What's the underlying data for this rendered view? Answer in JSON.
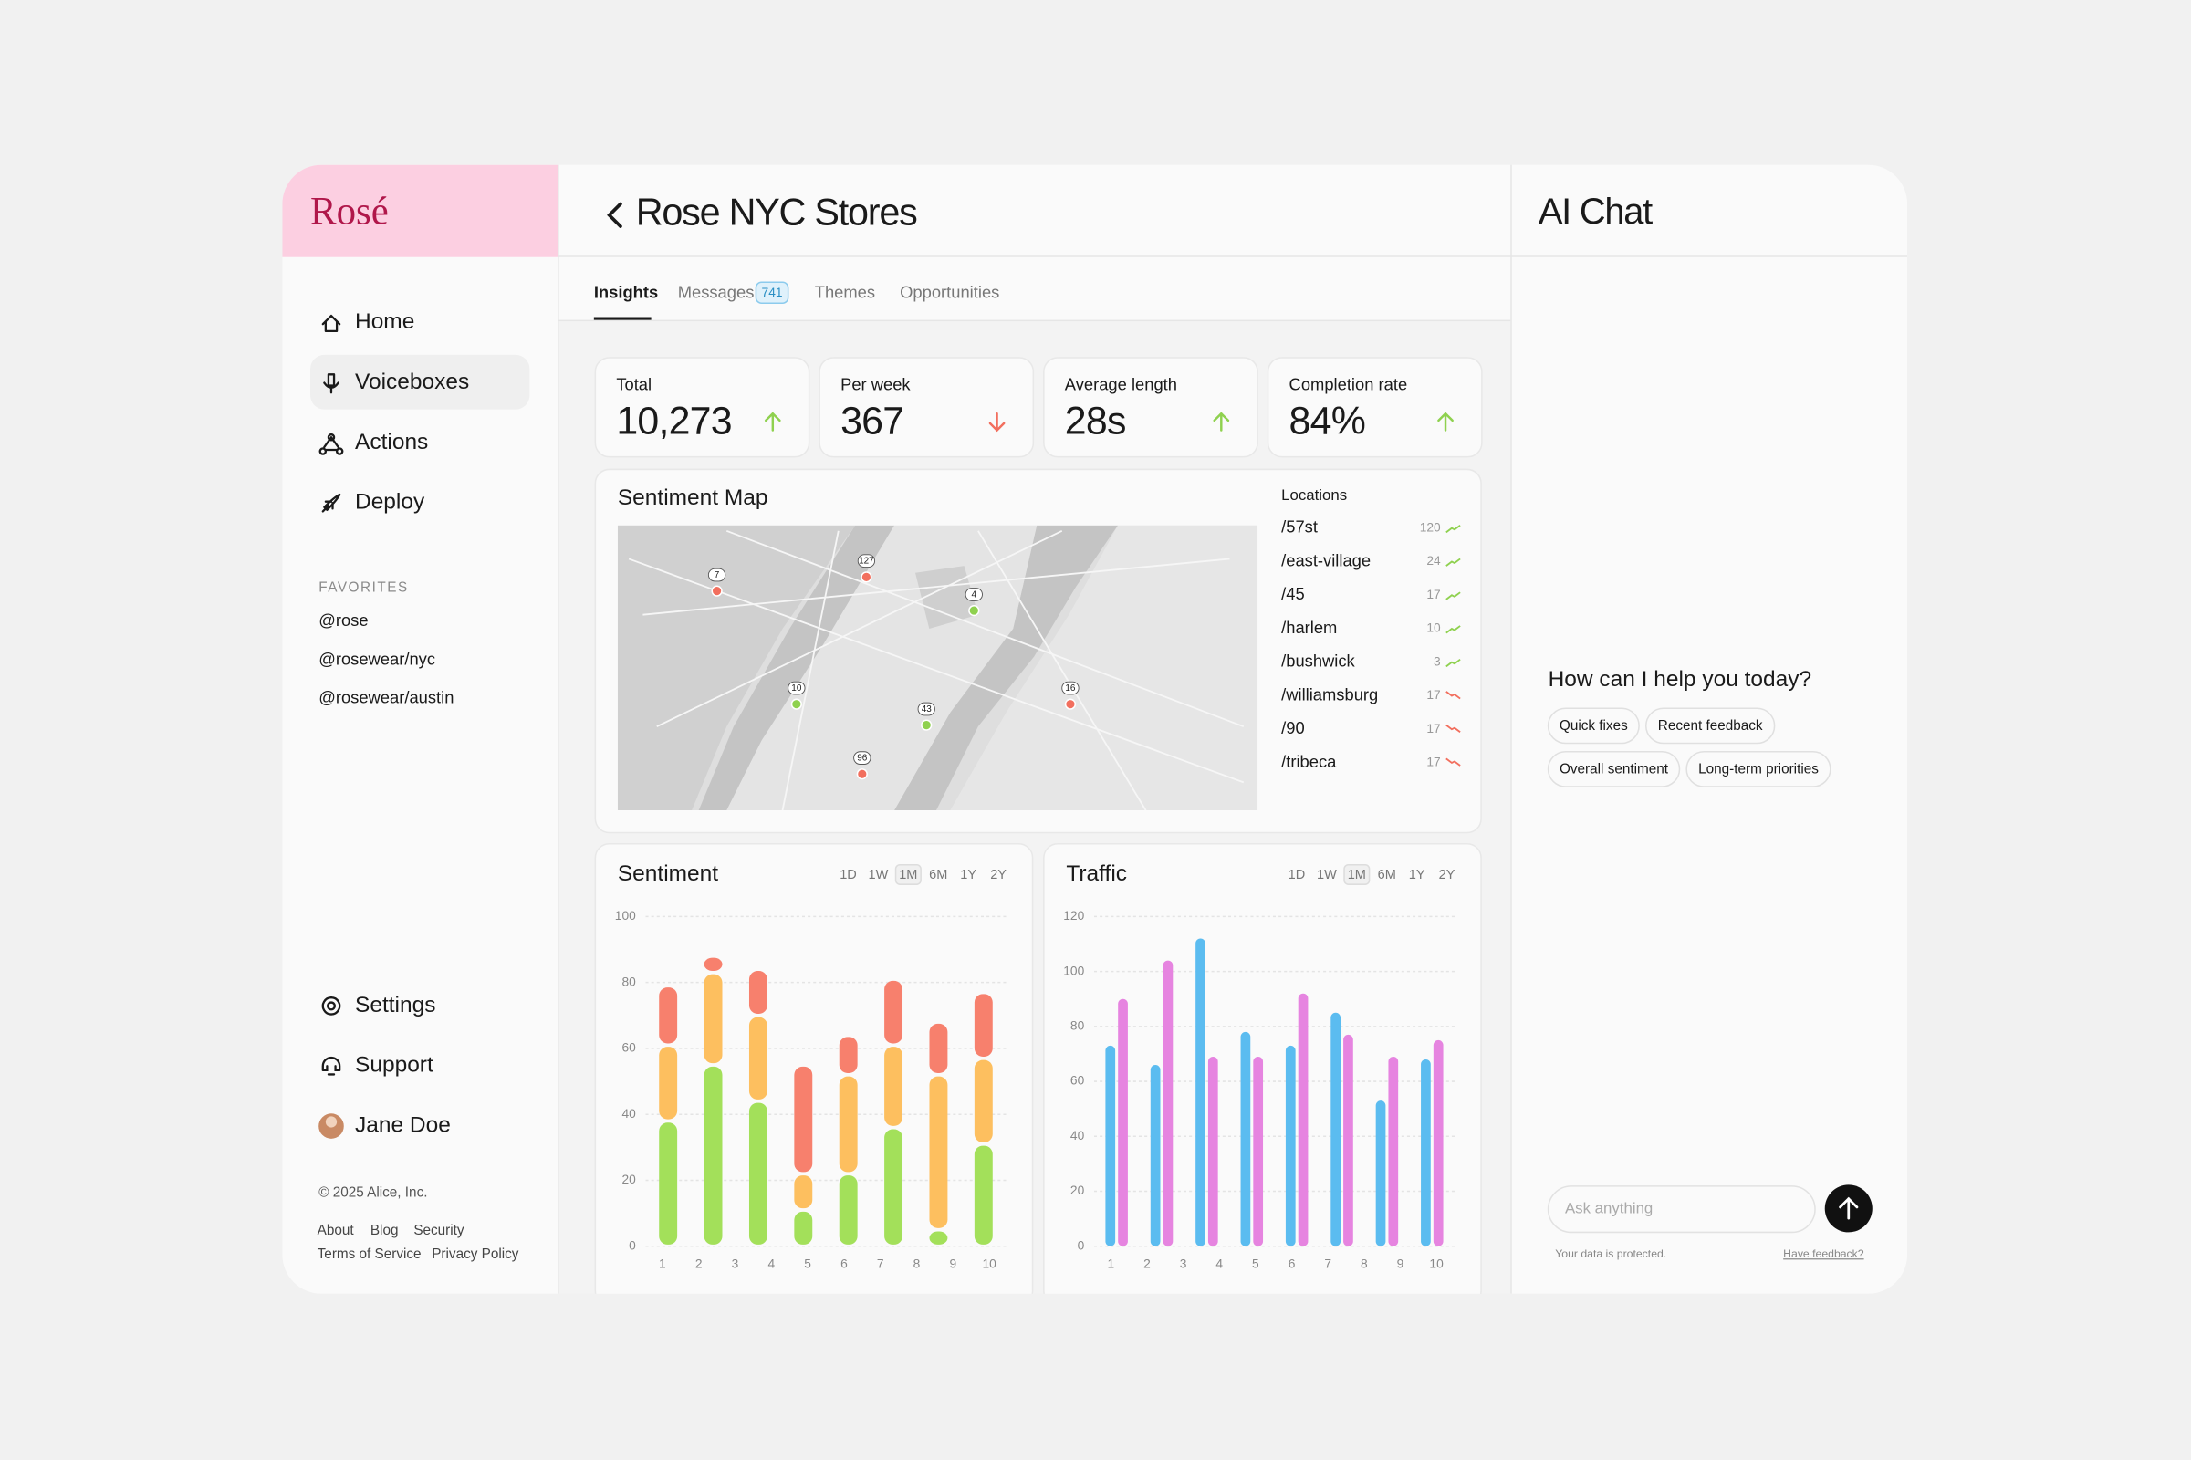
{
  "sidebar": {
    "brand": "Rosé",
    "nav": [
      "Home",
      "Voiceboxes",
      "Actions",
      "Deploy"
    ],
    "favorites_title": "FAVORITES",
    "favorites": [
      "@rose",
      "@rosewear/nyc",
      "@rosewear/austin"
    ],
    "bottom_nav": [
      "Settings",
      "Support"
    ],
    "user": "Jane Doe",
    "copyright": "© 2025 Alice, Inc.",
    "links": [
      "About",
      "Blog",
      "Security",
      "Terms of Service",
      "Privacy Policy"
    ]
  },
  "header": {
    "title": "Rose NYC Stores",
    "tabs": [
      {
        "label": "Insights"
      },
      {
        "label": "Messages",
        "badge": 741
      },
      {
        "label": "Themes"
      },
      {
        "label": "Opportunities"
      }
    ]
  },
  "stats": [
    {
      "label": "Total",
      "value": "10,273",
      "trend": "up"
    },
    {
      "label": "Per week",
      "value": "367",
      "trend": "down"
    },
    {
      "label": "Average length",
      "value": "28s",
      "trend": "up"
    },
    {
      "label": "Completion rate",
      "value": "84%",
      "trend": "up"
    }
  ],
  "map": {
    "title": "Sentiment Map",
    "locations_title": "Locations",
    "locations": [
      {
        "name": "/57st",
        "count": 120,
        "trend": "up"
      },
      {
        "name": "/east-village",
        "count": 24,
        "trend": "up"
      },
      {
        "name": "/45",
        "count": 17,
        "trend": "up"
      },
      {
        "name": "/harlem",
        "count": 10,
        "trend": "up"
      },
      {
        "name": "/bushwick",
        "count": 3,
        "trend": "up"
      },
      {
        "name": "/williamsburg",
        "count": 17,
        "trend": "down"
      },
      {
        "name": "/90",
        "count": 17,
        "trend": "down"
      },
      {
        "name": "/tribeca",
        "count": 17,
        "trend": "down"
      }
    ],
    "pins": [
      {
        "label": 7,
        "color": "#f26f5e"
      },
      {
        "label": 127,
        "color": "#f26f5e"
      },
      {
        "label": 4,
        "color": "#8fd14f"
      },
      {
        "label": 10,
        "color": "#8fd14f"
      },
      {
        "label": 43,
        "color": "#8fd14f"
      },
      {
        "label": 96,
        "color": "#f26f5e"
      },
      {
        "label": 16,
        "color": "#f26f5e"
      }
    ]
  },
  "sentiment_chart": {
    "type": "bar",
    "stacked": true,
    "title": "Sentiment",
    "ranges": [
      "1D",
      "1W",
      "1M",
      "6M",
      "1Y",
      "2Y"
    ],
    "selected_range": "1M",
    "categories": [
      null,
      null,
      null,
      null,
      null,
      null,
      null,
      null
    ],
    "series": [
      {
        "color": "#a3e05a",
        "values": [
          38,
          55,
          44,
          11,
          22,
          36,
          5,
          31
        ]
      },
      {
        "color": "#fdbf5f",
        "values": [
          23,
          28,
          26,
          11,
          30,
          25,
          47,
          26
        ]
      },
      {
        "color": "#f7806d",
        "values": [
          18,
          5,
          14,
          33,
          12,
          20,
          16,
          20
        ]
      }
    ],
    "ylim": [
      0,
      100
    ],
    "yticks": [
      0,
      20,
      40,
      60,
      80,
      100
    ],
    "xlim": [
      1,
      10
    ],
    "xticks": [
      1,
      2,
      3,
      4,
      5,
      6,
      7,
      8,
      9,
      10
    ],
    "grid": true
  },
  "traffic_chart": {
    "type": "bar",
    "stacked": false,
    "title": "Traffic",
    "ranges": [
      "1D",
      "1W",
      "1M",
      "6M",
      "1Y",
      "2Y"
    ],
    "selected_range": "1M",
    "categories": [
      null,
      null,
      null,
      null,
      null,
      null,
      null,
      null
    ],
    "series": [
      {
        "color": "#5bbcf0",
        "values": [
          73,
          66,
          112,
          78,
          73,
          85,
          53,
          68
        ]
      },
      {
        "color": "#e684e0",
        "values": [
          90,
          104,
          69,
          69,
          92,
          77,
          69,
          75
        ]
      }
    ],
    "ylim": [
      0,
      120
    ],
    "yticks": [
      0,
      20,
      40,
      60,
      80,
      100,
      120
    ],
    "xlim": [
      1,
      10
    ],
    "xticks": [
      1,
      2,
      3,
      4,
      5,
      6,
      7,
      8,
      9,
      10
    ],
    "grid": true
  },
  "chat": {
    "title": "AI Chat",
    "prompt": "How can I help you today?",
    "suggestions": [
      "Quick fixes",
      "Recent feedback",
      "Overall sentiment",
      "Long-term priorities"
    ],
    "placeholder": "Ask anything",
    "privacy": "Your data is protected.",
    "feedback": "Have feedback?"
  }
}
